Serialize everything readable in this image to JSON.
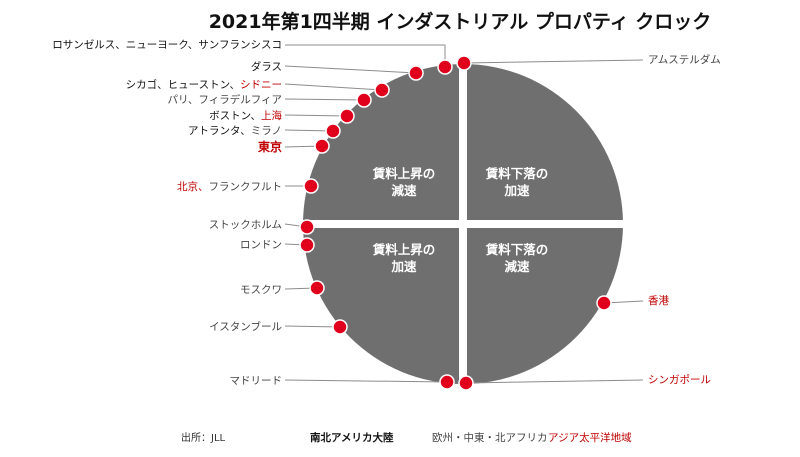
{
  "title": "2021年第1四半期 インダストリアル プロパティ クロック",
  "source": "出所：JLL",
  "colors": {
    "clock_face": "#6f6f6f",
    "divider": "#ffffff",
    "dot": "#e0001b",
    "dot_outline": "#ffffff",
    "americas": "#111111",
    "emea": "#444444",
    "apac": "#c00000",
    "leader": "#8c8c8c"
  },
  "quadrants": [
    {
      "id": "top-left",
      "line1": "賃料上昇の",
      "line2": "減速"
    },
    {
      "id": "top-right",
      "line1": "賃料下落の",
      "line2": "加速"
    },
    {
      "id": "bottom-left",
      "line1": "賃料上昇の",
      "line2": "加速"
    },
    {
      "id": "bottom-right",
      "line1": "賃料下落の",
      "line2": "減速"
    }
  ],
  "legend": [
    {
      "label": "南北アメリカ大陸",
      "region": "americas"
    },
    {
      "label": "欧州・中東・北アフリカ",
      "region": "emea"
    },
    {
      "label": "アジア太平洋地域",
      "region": "apac"
    }
  ],
  "cities": [
    {
      "key": "la",
      "parts": [
        {
          "text": "ロサンゼルス、ニューヨーク、サンフランシスコ",
          "region": "americas"
        }
      ]
    },
    {
      "key": "dallas",
      "parts": [
        {
          "text": "ダラス",
          "region": "americas"
        }
      ]
    },
    {
      "key": "chicago",
      "parts": [
        {
          "text": "シカゴ、ヒューストン、",
          "region": "americas"
        },
        {
          "text": "シドニー",
          "region": "apac"
        }
      ]
    },
    {
      "key": "paris",
      "parts": [
        {
          "text": "パリ、フィラデルフィア",
          "region": "emea"
        }
      ]
    },
    {
      "key": "boston",
      "parts": [
        {
          "text": "ボストン、",
          "region": "americas"
        },
        {
          "text": "上海",
          "region": "apac"
        }
      ]
    },
    {
      "key": "atlanta",
      "parts": [
        {
          "text": "アトランタ、",
          "region": "americas"
        },
        {
          "text": "ミラノ",
          "region": "emea"
        }
      ]
    },
    {
      "key": "tokyo",
      "parts": [
        {
          "text": "東京",
          "region": "apac"
        }
      ]
    },
    {
      "key": "beijing",
      "parts": [
        {
          "text": "北京、",
          "region": "apac"
        },
        {
          "text": "フランクフルト",
          "region": "emea"
        }
      ]
    },
    {
      "key": "stockholm",
      "parts": [
        {
          "text": "ストックホルム",
          "region": "emea"
        }
      ]
    },
    {
      "key": "london",
      "parts": [
        {
          "text": "ロンドン",
          "region": "emea"
        }
      ]
    },
    {
      "key": "moscow",
      "parts": [
        {
          "text": "モスクワ",
          "region": "emea"
        }
      ]
    },
    {
      "key": "istanbul",
      "parts": [
        {
          "text": "イスタンブール",
          "region": "emea"
        }
      ]
    },
    {
      "key": "madrid",
      "parts": [
        {
          "text": "マドリード",
          "region": "emea"
        }
      ]
    },
    {
      "key": "amsterdam",
      "parts": [
        {
          "text": "アムステルダム",
          "region": "emea"
        }
      ]
    },
    {
      "key": "hongkong",
      "parts": [
        {
          "text": "香港",
          "region": "apac"
        }
      ]
    },
    {
      "key": "singapore",
      "parts": [
        {
          "text": "シンガポール",
          "region": "apac"
        }
      ]
    }
  ]
}
